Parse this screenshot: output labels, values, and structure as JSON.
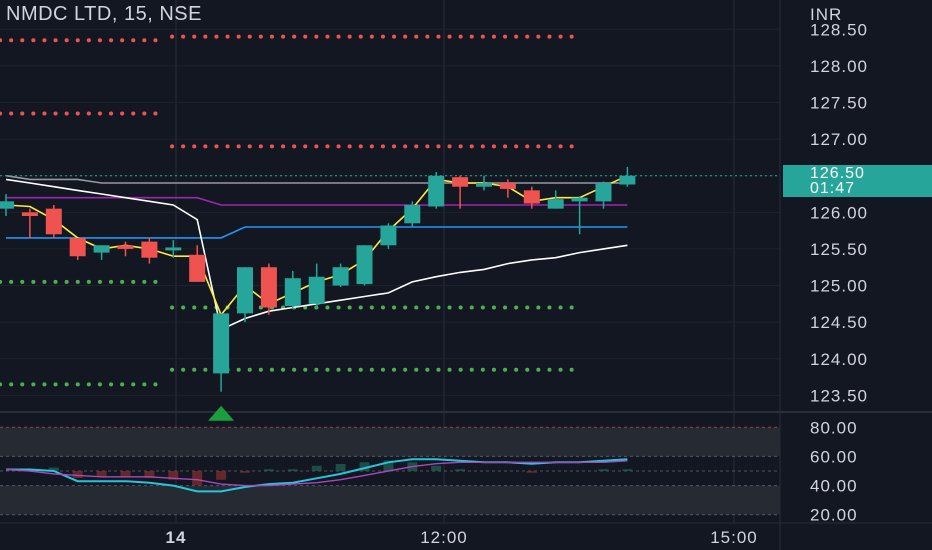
{
  "header": {
    "title": "NMDC LTD, 15, NSE"
  },
  "price_axis": {
    "currency": "INR",
    "ticks": [
      "128.50",
      "128.00",
      "127.50",
      "127.00",
      "126.50",
      "126.00",
      "125.50",
      "125.00",
      "124.50",
      "124.00",
      "123.50"
    ],
    "last_price_label": "126.50",
    "countdown_label": "01:47"
  },
  "oscillator_axis": {
    "ticks": [
      "80.00",
      "60.00",
      "40.00",
      "20.00"
    ]
  },
  "time_axis": {
    "ticks": [
      "14",
      "12:00",
      "15:00"
    ]
  },
  "colors": {
    "background": "#131722",
    "up": "#26a69a",
    "down": "#ef5350",
    "resistance_dots": "#ef5350",
    "support_dots": "#4caf50",
    "vwap": "#ffeb3b",
    "purple": "#9c27b0",
    "blue": "#2196f3",
    "white": "#ffffff",
    "gray": "#9598a1",
    "rsi": "#26c6da",
    "rsi_signal": "#ab47bc"
  },
  "chart_data": [
    {
      "type": "candlestick",
      "title": "NMDC LTD, 15, NSE",
      "ylim": [
        123.3,
        128.9
      ],
      "candles": [
        {
          "o": 126.05,
          "h": 126.25,
          "l": 125.95,
          "c": 126.15
        },
        {
          "o": 126.0,
          "h": 126.05,
          "l": 125.65,
          "c": 125.95
        },
        {
          "o": 126.05,
          "h": 126.1,
          "l": 125.65,
          "c": 125.7
        },
        {
          "o": 125.65,
          "h": 125.65,
          "l": 125.35,
          "c": 125.4
        },
        {
          "o": 125.45,
          "h": 125.55,
          "l": 125.35,
          "c": 125.55
        },
        {
          "o": 125.55,
          "h": 125.6,
          "l": 125.4,
          "c": 125.5
        },
        {
          "o": 125.6,
          "h": 125.65,
          "l": 125.3,
          "c": 125.38
        },
        {
          "o": 125.48,
          "h": 125.62,
          "l": 125.38,
          "c": 125.52
        },
        {
          "o": 125.42,
          "h": 125.55,
          "l": 125.05,
          "c": 125.05
        },
        {
          "o": 123.8,
          "h": 124.6,
          "l": 123.55,
          "c": 124.62
        },
        {
          "o": 124.62,
          "h": 125.25,
          "l": 124.5,
          "c": 125.25
        },
        {
          "o": 125.25,
          "h": 125.3,
          "l": 124.6,
          "c": 124.7
        },
        {
          "o": 124.72,
          "h": 125.2,
          "l": 124.68,
          "c": 125.1
        },
        {
          "o": 124.75,
          "h": 125.3,
          "l": 124.7,
          "c": 125.12
        },
        {
          "o": 125.0,
          "h": 125.3,
          "l": 124.98,
          "c": 125.25
        },
        {
          "o": 125.02,
          "h": 125.55,
          "l": 125.0,
          "c": 125.55
        },
        {
          "o": 125.55,
          "h": 125.85,
          "l": 125.5,
          "c": 125.82
        },
        {
          "o": 125.85,
          "h": 126.15,
          "l": 125.8,
          "c": 126.1
        },
        {
          "o": 126.08,
          "h": 126.55,
          "l": 126.05,
          "c": 126.5
        },
        {
          "o": 126.48,
          "h": 126.5,
          "l": 126.05,
          "c": 126.35
        },
        {
          "o": 126.35,
          "h": 126.5,
          "l": 126.3,
          "c": 126.4
        },
        {
          "o": 126.4,
          "h": 126.45,
          "l": 126.2,
          "c": 126.32
        },
        {
          "o": 126.3,
          "h": 126.35,
          "l": 126.05,
          "c": 126.12
        },
        {
          "o": 126.05,
          "h": 126.3,
          "l": 126.05,
          "c": 126.18
        },
        {
          "o": 126.15,
          "h": 126.22,
          "l": 125.7,
          "c": 126.2
        },
        {
          "o": 126.15,
          "h": 126.42,
          "l": 126.05,
          "c": 126.4
        },
        {
          "o": 126.38,
          "h": 126.62,
          "l": 126.35,
          "c": 126.5
        }
      ],
      "levels": [
        {
          "kind": "resistance",
          "y": 128.35,
          "from": 0,
          "to": 7
        },
        {
          "kind": "resistance",
          "y": 127.35,
          "from": 0,
          "to": 7
        },
        {
          "kind": "resistance",
          "y": 128.4,
          "from": 8,
          "to": 27
        },
        {
          "kind": "resistance",
          "y": 126.9,
          "from": 8,
          "to": 27
        },
        {
          "kind": "support",
          "y": 125.05,
          "from": 0,
          "to": 7
        },
        {
          "kind": "support",
          "y": 123.65,
          "from": 0,
          "to": 7
        },
        {
          "kind": "support",
          "y": 124.7,
          "from": 8,
          "to": 27
        },
        {
          "kind": "support",
          "y": 123.85,
          "from": 8,
          "to": 27
        }
      ],
      "lines": [
        {
          "name": "",
          "color": "gray",
          "values": [
            126.5,
            126.45,
            126.45,
            126.45,
            126.4,
            126.4,
            126.4,
            126.4,
            126.4,
            126.4,
            126.4,
            126.4,
            126.4,
            126.4,
            126.4,
            126.4,
            126.4,
            126.4,
            126.4,
            126.4,
            126.4,
            126.4,
            126.4,
            126.4,
            126.4,
            126.4,
            126.4
          ]
        },
        {
          "name": "",
          "color": "purple",
          "values": [
            126.2,
            126.2,
            126.2,
            126.2,
            126.2,
            126.2,
            126.2,
            126.2,
            126.2,
            126.1,
            126.1,
            126.1,
            126.1,
            126.1,
            126.1,
            126.1,
            126.1,
            126.1,
            126.1,
            126.1,
            126.1,
            126.1,
            126.1,
            126.1,
            126.1,
            126.1,
            126.1
          ]
        },
        {
          "name": "",
          "color": "blue",
          "values": [
            125.65,
            125.65,
            125.65,
            125.65,
            125.65,
            125.65,
            125.65,
            125.65,
            125.65,
            125.65,
            125.8,
            125.8,
            125.8,
            125.8,
            125.8,
            125.8,
            125.8,
            125.8,
            125.8,
            125.8,
            125.8,
            125.8,
            125.8,
            125.8,
            125.8,
            125.8,
            125.8
          ]
        },
        {
          "name": "",
          "color": "white",
          "values": [
            126.45,
            126.4,
            126.35,
            126.3,
            126.25,
            126.2,
            126.15,
            126.1,
            125.9,
            124.4,
            124.55,
            124.65,
            124.7,
            124.75,
            124.8,
            124.85,
            124.9,
            125.05,
            125.12,
            125.18,
            125.22,
            125.3,
            125.35,
            125.38,
            125.45,
            125.5,
            125.55
          ]
        },
        {
          "name": "",
          "color": "vwap",
          "values": [
            126.1,
            126.08,
            125.9,
            125.65,
            125.5,
            125.55,
            125.5,
            125.4,
            125.4,
            124.6,
            125.0,
            124.75,
            124.9,
            125.05,
            125.15,
            125.35,
            125.75,
            126.05,
            126.45,
            126.4,
            126.4,
            126.35,
            126.15,
            126.2,
            126.2,
            126.35,
            126.5
          ]
        }
      ]
    },
    {
      "type": "line",
      "title": "",
      "ylim": [
        15,
        85
      ],
      "ticks": [
        80,
        60,
        40,
        20
      ],
      "series": [
        {
          "name": "",
          "color": "rsi",
          "values": [
            51,
            51,
            50,
            43,
            43,
            43,
            42,
            40,
            36,
            36,
            39,
            41,
            42,
            45,
            48,
            52,
            56,
            58,
            58,
            57,
            56,
            56,
            55,
            56,
            56,
            57,
            58
          ]
        },
        {
          "name": "",
          "color": "rsi_signal",
          "values": [
            51,
            50,
            48,
            47,
            46,
            46,
            46,
            45,
            44,
            41,
            40,
            40,
            41,
            42,
            44,
            47,
            50,
            53,
            55,
            56,
            56,
            56,
            56,
            56,
            56,
            56,
            57
          ]
        }
      ]
    }
  ]
}
